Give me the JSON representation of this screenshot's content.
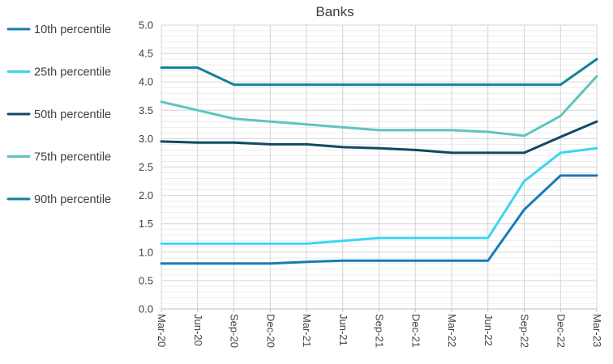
{
  "chart_data": {
    "type": "line",
    "title": "Banks",
    "xlabel": "",
    "ylabel": "",
    "ylim": [
      0,
      5
    ],
    "yticks": [
      "0.0",
      "0.5",
      "1.0",
      "1.5",
      "2.0",
      "2.5",
      "3.0",
      "3.5",
      "4.0",
      "4.5",
      "5.0"
    ],
    "categories": [
      "Mar-20",
      "Jun-20",
      "Sep-20",
      "Dec-20",
      "Mar-21",
      "Jun-21",
      "Sep-21",
      "Dec-21",
      "Mar-22",
      "Jun-22",
      "Sep-22",
      "Dec-22",
      "Mar-23"
    ],
    "grid": true,
    "legend_position": "left",
    "series": [
      {
        "name": "10th percentile",
        "color": "#1a7ab8",
        "values": [
          0.8,
          0.8,
          0.8,
          0.8,
          0.83,
          0.85,
          0.85,
          0.85,
          0.85,
          0.85,
          1.75,
          2.35,
          2.35
        ]
      },
      {
        "name": "25th percentile",
        "color": "#3cd5f2",
        "values": [
          1.15,
          1.15,
          1.15,
          1.15,
          1.15,
          1.2,
          1.25,
          1.25,
          1.25,
          1.25,
          2.25,
          2.75,
          2.83
        ]
      },
      {
        "name": "50th percentile",
        "color": "#0f4a62",
        "values": [
          2.95,
          2.93,
          2.93,
          2.9,
          2.9,
          2.85,
          2.83,
          2.8,
          2.75,
          2.75,
          2.75,
          3.03,
          3.3
        ]
      },
      {
        "name": "75th percentile",
        "color": "#5ec4c0",
        "values": [
          3.65,
          3.5,
          3.35,
          3.3,
          3.25,
          3.2,
          3.15,
          3.15,
          3.15,
          3.12,
          3.05,
          3.4,
          4.1
        ]
      },
      {
        "name": "90th percentile",
        "color": "#11819c",
        "values": [
          4.25,
          4.25,
          3.95,
          3.95,
          3.95,
          3.95,
          3.95,
          3.95,
          3.95,
          3.95,
          3.95,
          3.95,
          4.4
        ]
      }
    ]
  }
}
